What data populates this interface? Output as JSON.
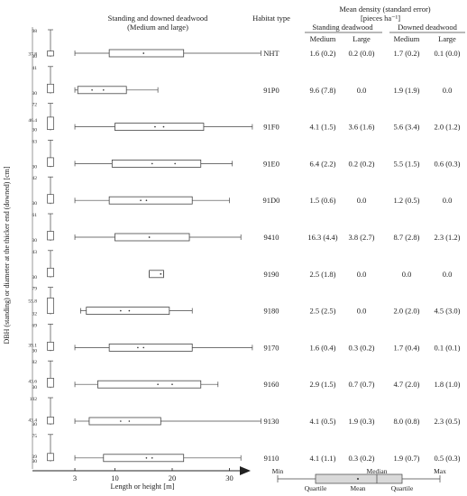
{
  "chart_data": {
    "type": "boxplot",
    "title": "Standing and downed deadwood",
    "subtitle": "(Medium and large)",
    "xlabel": "Length or height [m]",
    "ylabel": "DBH (standing) or diameter at the thicker end (downed) [cm]",
    "x_ticks": [
      "3",
      "10",
      "20",
      "30"
    ],
    "xlim": [
      0,
      36
    ],
    "table_headers": {
      "habitat_type": "Habitat type",
      "mean_density": "Mean density  (standard error)",
      "unit": "[pieces ha⁻¹]",
      "standing": "Standing deadwood",
      "downed": "Downed deadwood",
      "medium": "Medium",
      "large": "Large"
    },
    "rows": [
      {
        "habitat": "NHT",
        "diam_max": "98",
        "diam_mid": "37.8",
        "diam_min": "30",
        "box": {
          "min": 3,
          "q1": 9,
          "median": 15,
          "mean": 15,
          "q3": 22,
          "max": 35.5
        },
        "sm": "1.6 (0.2)",
        "sl": "0.2 (0.0)",
        "dm": "1.7 (0.2)",
        "dl": "0.1 (0.0)"
      },
      {
        "habitat": "91P0",
        "diam_max": "41",
        "diam_mid": "",
        "diam_min": "30",
        "box": {
          "min": 3,
          "q1": 3.5,
          "median": 6,
          "mean": 8,
          "q3": 12,
          "max": 17.5
        },
        "sm": "9.6 (7.8)",
        "sl": "0.0",
        "dm": "1.9 (1.9)",
        "dl": "0.0"
      },
      {
        "habitat": "91F0",
        "diam_max": "72",
        "diam_mid": "46.4",
        "diam_min": "30",
        "box": {
          "min": 3,
          "q1": 10,
          "median": 17,
          "mean": 18.5,
          "q3": 25.5,
          "max": 34
        },
        "sm": "4.1 (1.5)",
        "sl": "3.6 (1.6)",
        "dm": "5.6 (3.4)",
        "dl": "2.0 (1.2)"
      },
      {
        "habitat": "91E0",
        "diam_max": "63",
        "diam_mid": "",
        "diam_min": "30",
        "box": {
          "min": 3,
          "q1": 9.5,
          "median": 16.5,
          "mean": 20.5,
          "q3": 25,
          "max": 30.5
        },
        "sm": "6.4 (2.2)",
        "sl": "0.2 (0.2)",
        "dm": "5.5 (1.5)",
        "dl": "0.6 (0.3)"
      },
      {
        "habitat": "91D0",
        "diam_max": "42",
        "diam_mid": "",
        "diam_min": "30",
        "box": {
          "min": 3,
          "q1": 9,
          "median": 14.5,
          "mean": 15.5,
          "q3": 23.5,
          "max": 30
        },
        "sm": "1.5 (0.6)",
        "sl": "0.0",
        "dm": "1.2 (0.5)",
        "dl": "0.0"
      },
      {
        "habitat": "9410",
        "diam_max": "61",
        "diam_mid": "",
        "diam_min": "30",
        "box": {
          "min": 3,
          "q1": 10,
          "median": 16,
          "mean": 16,
          "q3": 23,
          "max": 32
        },
        "sm": "16.3 (4.4)",
        "sl": "3.8 (2.7)",
        "dm": "8.7 (2.8)",
        "dl": "2.3 (1.2)"
      },
      {
        "habitat": "9190",
        "diam_max": "43",
        "diam_mid": "",
        "diam_min": "30",
        "box": {
          "min": 16,
          "q1": 16,
          "median": 18,
          "mean": 18,
          "q3": 18.5,
          "max": 18.5
        },
        "sm": "2.5 (1.8)",
        "sl": "0.0",
        "dm": "0.0",
        "dl": "0.0"
      },
      {
        "habitat": "9180",
        "diam_max": "79",
        "diam_mid": "55.8",
        "diam_min": "32",
        "box": {
          "min": 4,
          "q1": 5,
          "median": 11,
          "mean": 12.5,
          "q3": 19.5,
          "max": 23.5
        },
        "sm": "2.5 (2.5)",
        "sl": "0.0",
        "dm": "2.0 (2.0)",
        "dl": "4.5 (3.0)"
      },
      {
        "habitat": "9170",
        "diam_max": "69",
        "diam_mid": "39.1",
        "diam_min": "30",
        "box": {
          "min": 3,
          "q1": 9,
          "median": 14,
          "mean": 15,
          "q3": 23.5,
          "max": 34
        },
        "sm": "1.6 (0.4)",
        "sl": "0.3 (0.2)",
        "dm": "1.7 (0.4)",
        "dl": "0.1 (0.1)"
      },
      {
        "habitat": "9160",
        "diam_max": "82",
        "diam_mid": "43.6",
        "diam_min": "30",
        "box": {
          "min": 3,
          "q1": 7,
          "median": 17.5,
          "mean": 20,
          "q3": 25,
          "max": 28
        },
        "sm": "2.9 (1.5)",
        "sl": "0.7 (0.7)",
        "dm": "4.7 (2.0)",
        "dl": "1.8 (1.0)"
      },
      {
        "habitat": "9130",
        "diam_max": "102",
        "diam_mid": "43.4",
        "diam_min": "30",
        "box": {
          "min": 3,
          "q1": 5.5,
          "median": 11,
          "mean": 12.5,
          "q3": 18,
          "max": 35.5
        },
        "sm": "4.1 (0.5)",
        "sl": "1.9 (0.3)",
        "dm": "8.0 (0.8)",
        "dl": "2.3 (0.5)"
      },
      {
        "habitat": "9110",
        "diam_max": "75",
        "diam_mid": "39",
        "diam_min": "30",
        "box": {
          "min": 3,
          "q1": 8,
          "median": 15.5,
          "mean": 16.5,
          "q3": 22,
          "max": 32
        },
        "sm": "4.1 (1.1)",
        "sl": "0.3 (0.2)",
        "dm": "1.9 (0.7)",
        "dl": "0.5 (0.3)"
      }
    ],
    "legend": {
      "min": "Min",
      "median": "Median",
      "max": "Max",
      "quartile_low": "Quartile",
      "mean": "Mean",
      "quartile_high": "Quartile"
    }
  }
}
